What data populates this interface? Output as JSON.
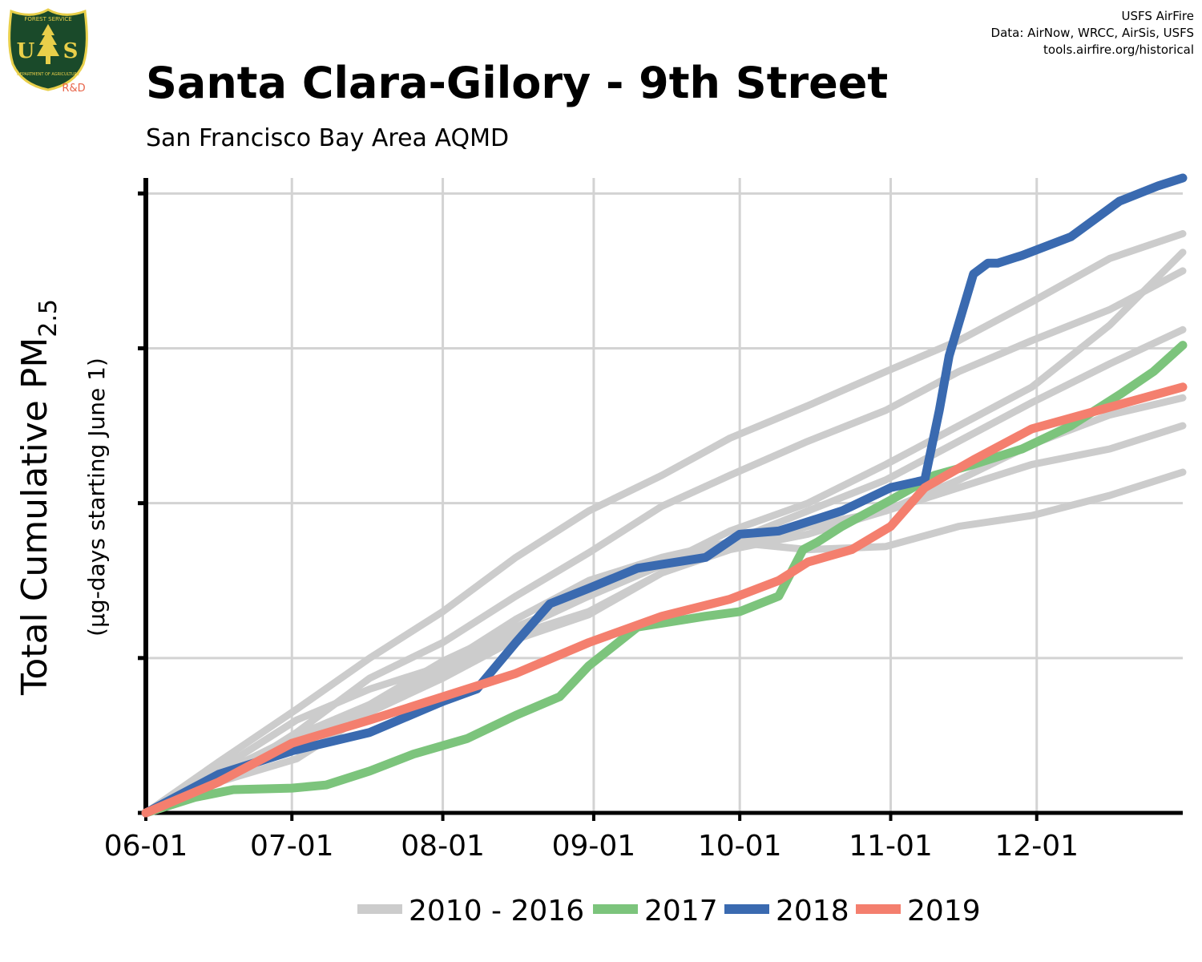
{
  "header": {
    "title": "Santa Clara-Gilory - 9th Street",
    "subtitle": "San Francisco Bay Area AQMD",
    "credits": [
      "USFS AirFire",
      "Data: AirNow, WRCC, AirSis, USFS",
      "tools.airfire.org/historical"
    ],
    "logo": {
      "top_text": "FOREST SERVICE",
      "letters": "US",
      "bottom_text": "DEPARTMENT OF AGRICULTURE",
      "tag": "R&D",
      "colors": {
        "shield": "#1a4a2a",
        "gold": "#e8cf4a",
        "tag": "#e8654a"
      }
    }
  },
  "chart_data": {
    "type": "line",
    "title": "Santa Clara-Gilory - 9th Street",
    "subtitle": "San Francisco Bay Area AQMD",
    "xlabel": "",
    "ylabel": "Total Cumulative PM",
    "ylabel_sub": "2.5",
    "ylabel_units": "(µg-days starting June 1)",
    "x_ticks": [
      "06-01",
      "07-01",
      "08-01",
      "09-01",
      "10-01",
      "11-01",
      "12-01"
    ],
    "x_tick_days": [
      0,
      30,
      61,
      92,
      122,
      153,
      183
    ],
    "xlim": [
      0,
      213
    ],
    "ylim": [
      0,
      4.1
    ],
    "y_ticks": [
      0,
      1,
      2,
      3,
      4
    ],
    "y_tick_labels_visible": false,
    "grid": true,
    "legend_position": "bottom",
    "legend": [
      {
        "label": "2010 - 2016",
        "color": "#cccccc"
      },
      {
        "label": "2017",
        "color": "#7cc47c"
      },
      {
        "label": "2018",
        "color": "#3a6ab0"
      },
      {
        "label": "2019",
        "color": "#f47f6e"
      }
    ],
    "series": [
      {
        "name": "2010 - 2016",
        "group": "background",
        "color": "#cccccc",
        "x": [
          0,
          15,
          31,
          46,
          61,
          76,
          91,
          106,
          120,
          136,
          152,
          167,
          182,
          198,
          213
        ],
        "y": [
          0,
          0.33,
          0.67,
          1.0,
          1.3,
          1.65,
          1.95,
          2.18,
          2.42,
          2.63,
          2.85,
          3.05,
          3.3,
          3.58,
          3.74
        ]
      },
      {
        "group": "background",
        "color": "#cccccc",
        "x": [
          0,
          15,
          31,
          46,
          61,
          76,
          91,
          106,
          120,
          136,
          152,
          167,
          182,
          198,
          213
        ],
        "y": [
          0,
          0.2,
          0.52,
          0.87,
          1.1,
          1.4,
          1.68,
          1.98,
          2.18,
          2.4,
          2.6,
          2.85,
          3.05,
          3.25,
          3.5
        ]
      },
      {
        "group": "background",
        "color": "#cccccc",
        "x": [
          0,
          15,
          31,
          46,
          61,
          76,
          91,
          106,
          120,
          136,
          152,
          167,
          182,
          198,
          213
        ],
        "y": [
          0,
          0.28,
          0.6,
          0.8,
          0.95,
          1.15,
          1.3,
          1.55,
          1.72,
          1.85,
          1.95,
          2.15,
          2.38,
          2.57,
          2.68
        ]
      },
      {
        "group": "background",
        "color": "#cccccc",
        "x": [
          0,
          15,
          31,
          46,
          61,
          76,
          91,
          106,
          120,
          136,
          152,
          167,
          182,
          198,
          213
        ],
        "y": [
          0,
          0.2,
          0.35,
          0.65,
          0.87,
          1.12,
          1.28,
          1.55,
          1.7,
          1.8,
          1.95,
          2.1,
          2.25,
          2.35,
          2.5
        ]
      },
      {
        "group": "background",
        "color": "#cccccc",
        "x": [
          0,
          15,
          31,
          46,
          61,
          76,
          91,
          106,
          120,
          136,
          152,
          167,
          182,
          198,
          213
        ],
        "y": [
          0,
          0.25,
          0.48,
          0.67,
          0.9,
          1.18,
          1.4,
          1.6,
          1.75,
          1.95,
          2.15,
          2.4,
          2.65,
          2.9,
          3.12
        ]
      },
      {
        "group": "background",
        "color": "#cccccc",
        "x": [
          0,
          15,
          31,
          46,
          61,
          76,
          91,
          106,
          120,
          136,
          152,
          167,
          182,
          198,
          213
        ],
        "y": [
          0,
          0.2,
          0.45,
          0.7,
          0.95,
          1.25,
          1.5,
          1.65,
          1.75,
          1.7,
          1.72,
          1.85,
          1.92,
          2.05,
          2.2
        ]
      },
      {
        "group": "background",
        "color": "#cccccc",
        "x": [
          0,
          15,
          31,
          46,
          61,
          76,
          91,
          106,
          120,
          136,
          152,
          167,
          182,
          198,
          213
        ],
        "y": [
          0,
          0.25,
          0.5,
          0.7,
          0.98,
          1.2,
          1.4,
          1.6,
          1.82,
          2.0,
          2.25,
          2.5,
          2.75,
          3.15,
          3.62
        ]
      },
      {
        "name": "2017",
        "color": "#7cc47c",
        "x": [
          0,
          10,
          18,
          30,
          37,
          46,
          55,
          66,
          76,
          85,
          91,
          101,
          115,
          122,
          130,
          135,
          138,
          143,
          153,
          162,
          170,
          180,
          190,
          200,
          207,
          213
        ],
        "y": [
          0,
          0.1,
          0.15,
          0.16,
          0.18,
          0.27,
          0.38,
          0.48,
          0.63,
          0.75,
          0.95,
          1.2,
          1.27,
          1.3,
          1.4,
          1.7,
          1.75,
          1.85,
          2.02,
          2.18,
          2.25,
          2.35,
          2.5,
          2.7,
          2.85,
          3.02
        ]
      },
      {
        "name": "2018",
        "color": "#3a6ab0",
        "x": [
          0,
          15,
          30,
          46,
          61,
          68,
          76,
          83,
          91,
          101,
          115,
          122,
          130,
          143,
          153,
          160,
          163,
          165,
          170,
          173,
          175,
          180,
          190,
          200,
          208,
          213
        ],
        "y": [
          0,
          0.25,
          0.4,
          0.52,
          0.72,
          0.8,
          1.1,
          1.35,
          1.45,
          1.58,
          1.65,
          1.8,
          1.82,
          1.95,
          2.1,
          2.15,
          2.6,
          2.95,
          3.48,
          3.55,
          3.55,
          3.6,
          3.72,
          3.95,
          4.05,
          4.1
        ]
      },
      {
        "name": "2019",
        "color": "#f47f6e",
        "x": [
          0,
          15,
          30,
          46,
          61,
          76,
          91,
          106,
          120,
          130,
          136,
          145,
          153,
          160,
          170,
          182,
          198,
          213
        ],
        "y": [
          0,
          0.2,
          0.45,
          0.6,
          0.75,
          0.9,
          1.1,
          1.27,
          1.38,
          1.5,
          1.62,
          1.7,
          1.85,
          2.1,
          2.28,
          2.48,
          2.62,
          2.75
        ]
      }
    ]
  }
}
